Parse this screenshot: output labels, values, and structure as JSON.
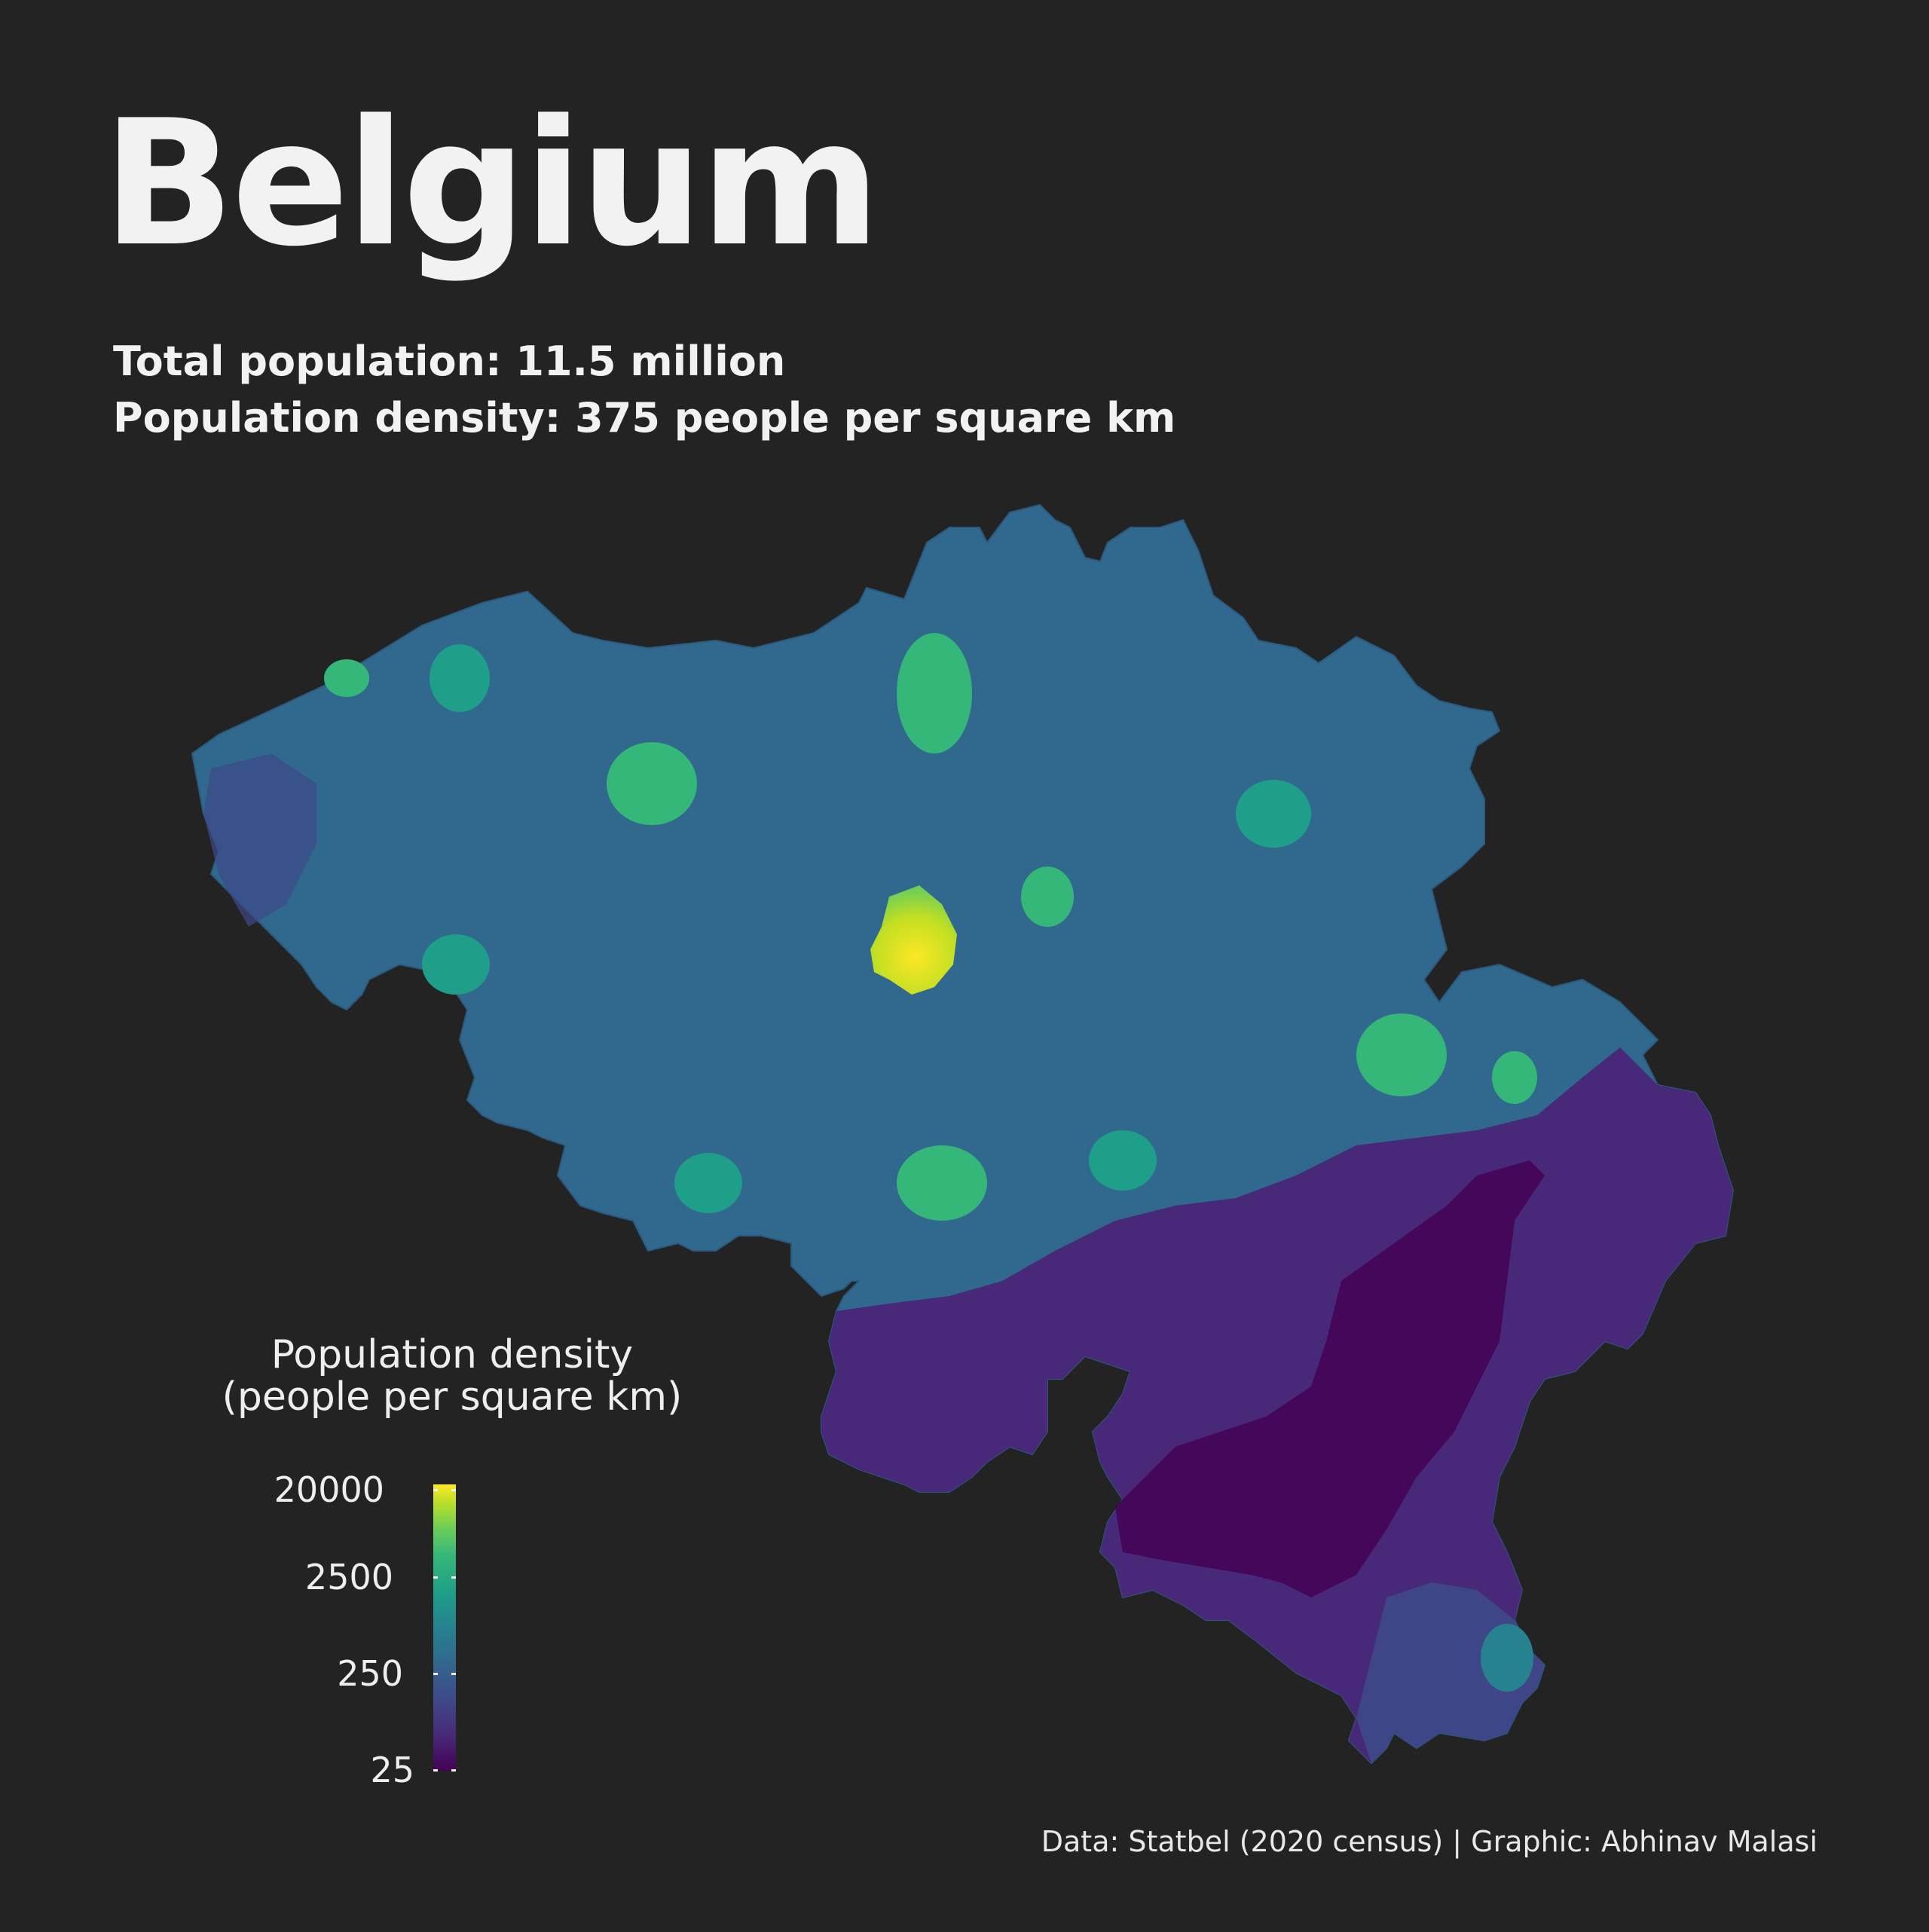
{
  "title": "Belgium",
  "subtitle_lines": [
    "Total population: 11.5 million",
    "Population density: 375 people per square km"
  ],
  "legend": {
    "title_lines": [
      "Population density",
      "(people per square km)"
    ],
    "ticks": [
      "20000",
      "2500",
      "250",
      "25"
    ],
    "colors": [
      "#440154",
      "#3e4989",
      "#26828e",
      "#35b779",
      "#fde725"
    ]
  },
  "caption": "Data: Statbel (2020 census) | Graphic: Abhinav Malasi",
  "colors": {
    "background": "#232323",
    "text": "#f2f2f2"
  }
}
